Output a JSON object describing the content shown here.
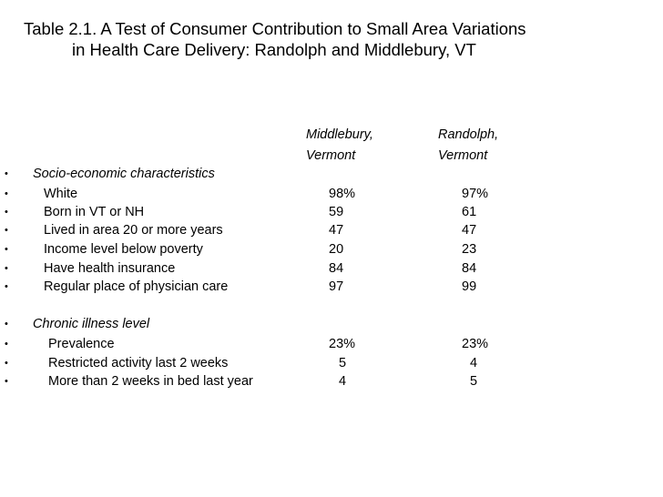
{
  "title": {
    "line1": "Table 2.1. A Test of Consumer Contribution to Small Area Variations",
    "line2": "in Health Care Delivery: Randolph and Middlebury, VT"
  },
  "columns": {
    "middlebury_line1": "Middlebury,",
    "middlebury_line2": "Vermont",
    "randolph_line1": "Randolph,",
    "randolph_line2": "Vermont"
  },
  "bullet": "•",
  "rows": [
    {
      "label": "Socio-economic characteristics",
      "middlebury": "",
      "randolph": ""
    },
    {
      "label": "White",
      "middlebury": "98%",
      "randolph": "97%"
    },
    {
      "label": "Born in VT or NH",
      "middlebury": "59",
      "randolph": "61"
    },
    {
      "label": "Lived in area 20 or more years",
      "middlebury": "47",
      "randolph": "47"
    },
    {
      "label": "Income level below poverty",
      "middlebury": "20",
      "randolph": "23"
    },
    {
      "label": "Have health insurance",
      "middlebury": "84",
      "randolph": "84"
    },
    {
      "label": "Regular place of physician care",
      "middlebury": "97",
      "randolph": "99"
    },
    {
      "label": "Chronic illness level",
      "middlebury": "",
      "randolph": ""
    },
    {
      "label": "Prevalence",
      "middlebury": "23%",
      "randolph": "23%"
    },
    {
      "label": "Restricted activity last 2 weeks",
      "middlebury": "5",
      "randolph": "4"
    },
    {
      "label": "More than 2 weeks in bed last year",
      "middlebury": "4",
      "randolph": "5"
    }
  ]
}
